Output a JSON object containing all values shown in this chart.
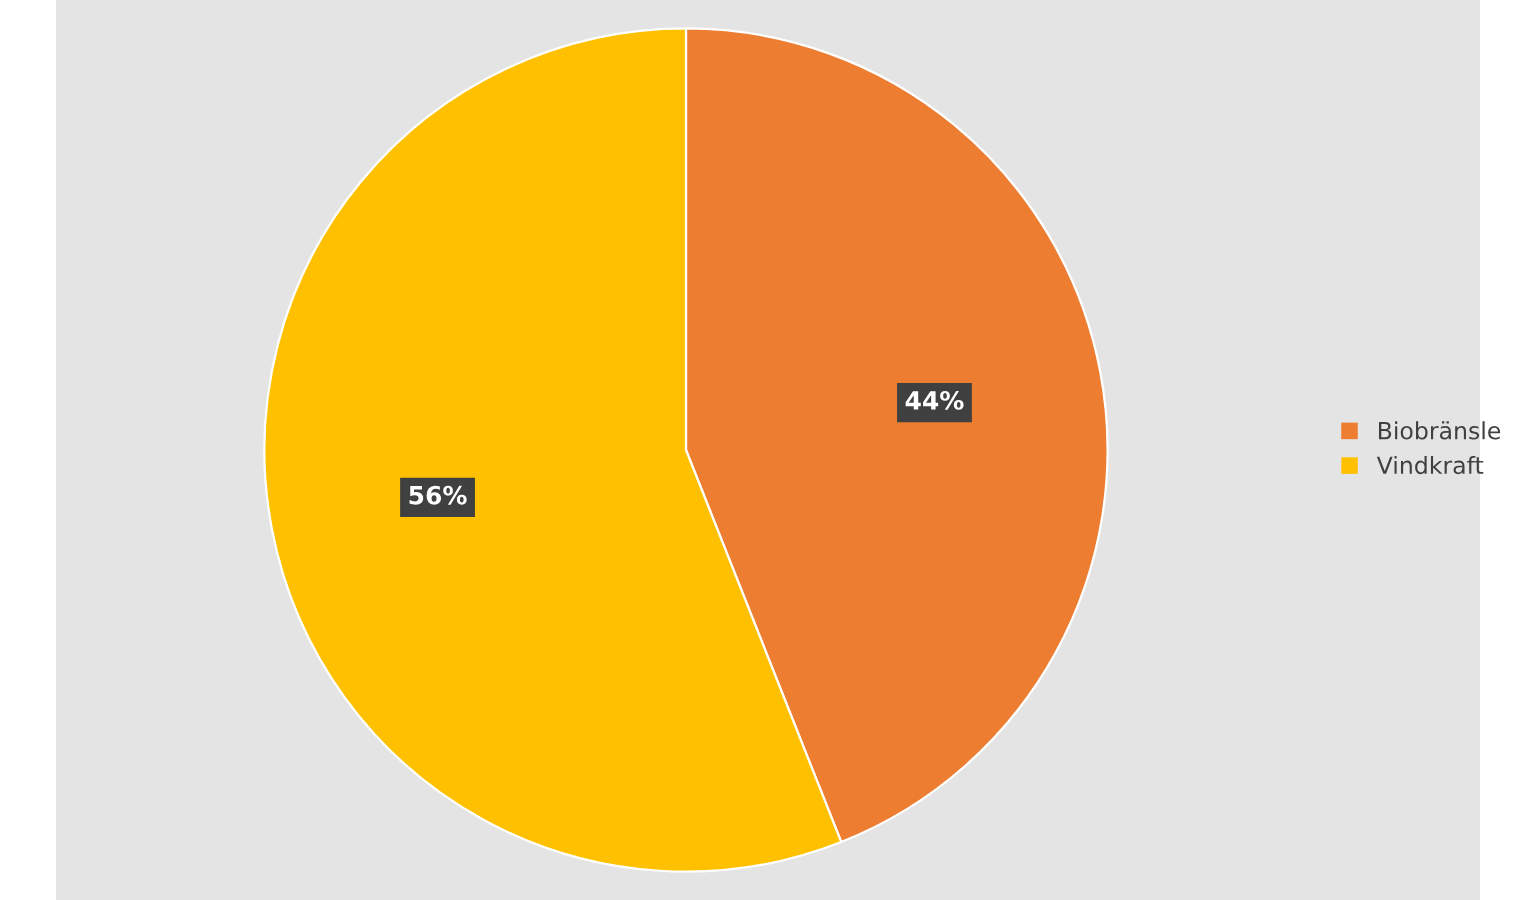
{
  "chart_data": {
    "type": "pie",
    "categories": [
      "Biobränsle",
      "Vindkraft"
    ],
    "values": [
      44,
      56
    ],
    "colors": [
      "#ed7d31",
      "#ffc000"
    ],
    "value_labels": [
      "44%",
      "56%"
    ],
    "legend": "right"
  }
}
